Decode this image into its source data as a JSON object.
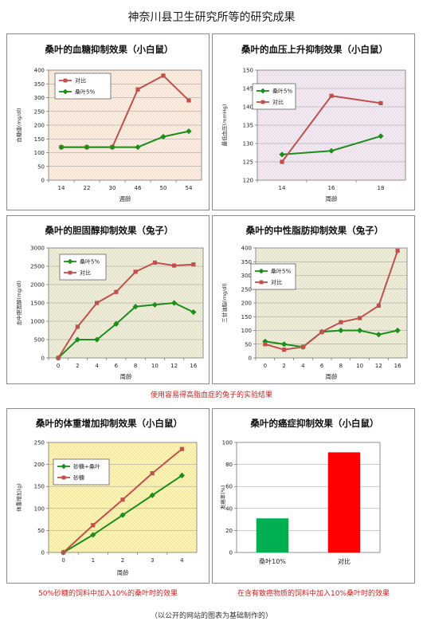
{
  "page": {
    "title": "神奈川县卫生研究所等的研究成果",
    "note_hyper": "使用容易得高脂血症的兔子的实验结果",
    "note_weight": "50%砂糖的饲料中加入10%的桑叶时的效果",
    "note_cancer": "在含有致癌物质的饲料中加入10%桑叶时的效果",
    "footer": "（以公开的网站的图表为基础制作的）"
  },
  "chart_data": [
    {
      "id": "glucose",
      "type": "line",
      "title": "桑叶的血糖抑制效果（小白鼠）",
      "xlabel": "週龄",
      "ylabel": "血糖值(mg/dl)",
      "categories": [
        "14",
        "22",
        "30",
        "46",
        "50",
        "54"
      ],
      "ylim": [
        0,
        400
      ],
      "yticks": [
        0,
        50,
        100,
        150,
        200,
        250,
        300,
        350,
        400
      ],
      "legend_position": "top-left",
      "series": [
        {
          "name": "对比",
          "color": "#c0504d",
          "marker": "square",
          "values": [
            120,
            120,
            120,
            330,
            380,
            290
          ]
        },
        {
          "name": "桑叶5%",
          "color": "#1a8f1a",
          "marker": "diamond",
          "values": [
            120,
            120,
            120,
            120,
            158,
            178
          ]
        }
      ],
      "background": "#fdf0e2"
    },
    {
      "id": "pressure",
      "type": "line",
      "title": "桑叶的血压上升抑制效果（小白鼠）",
      "xlabel": "周龄",
      "ylabel": "最低血压(mmHg)",
      "categories": [
        "14",
        "16",
        "18"
      ],
      "ylim": [
        120,
        150
      ],
      "yticks": [
        120,
        125,
        130,
        135,
        140,
        145,
        150
      ],
      "legend_position": "top-left",
      "series": [
        {
          "name": "桑叶5%",
          "color": "#1a8f1a",
          "marker": "diamond",
          "values": [
            127,
            128,
            132
          ]
        },
        {
          "name": "对比",
          "color": "#c0504d",
          "marker": "square",
          "values": [
            125,
            143,
            141
          ]
        }
      ],
      "background": "#f3ecf6"
    },
    {
      "id": "cholesterol",
      "type": "line",
      "title": "桑叶的胆固醇抑制效果（兔子）",
      "xlabel": "周龄",
      "ylabel": "血中胆固醇(mg/dl)",
      "categories": [
        "0",
        "2",
        "4",
        "6",
        "8",
        "10",
        "12",
        "16"
      ],
      "ylim": [
        0,
        3000
      ],
      "yticks": [
        0,
        500,
        1000,
        1500,
        2000,
        2500,
        3000
      ],
      "legend_position": "top-left",
      "series": [
        {
          "name": "桑叶5%",
          "color": "#1a8f1a",
          "marker": "diamond",
          "values": [
            0,
            500,
            500,
            930,
            1400,
            1450,
            1500,
            1250
          ]
        },
        {
          "name": "对比",
          "color": "#c0504d",
          "marker": "square",
          "values": [
            0,
            850,
            1500,
            1800,
            2350,
            2600,
            2520,
            2550
          ]
        }
      ],
      "background": "#eef0da"
    },
    {
      "id": "triglyceride",
      "type": "line",
      "title": "桑叶的中性脂肪抑制效果（兔子）",
      "xlabel": "周龄",
      "ylabel": "三甘油脂(mg/dl)",
      "categories": [
        "0",
        "2",
        "4",
        "6",
        "8",
        "10",
        "12",
        "16"
      ],
      "ylim": [
        0,
        400
      ],
      "yticks": [
        0,
        50,
        100,
        150,
        200,
        250,
        300,
        350,
        400
      ],
      "legend_position": "top-left",
      "series": [
        {
          "name": "桑叶5%",
          "color": "#1a8f1a",
          "marker": "diamond",
          "values": [
            60,
            50,
            40,
            95,
            100,
            100,
            85,
            100
          ]
        },
        {
          "name": "对比",
          "color": "#c0504d",
          "marker": "square",
          "values": [
            50,
            30,
            40,
            95,
            130,
            145,
            190,
            390
          ]
        }
      ],
      "background": "#eef0da"
    },
    {
      "id": "weight",
      "type": "line",
      "title": "桑叶的体重增加抑制效果（小白鼠）",
      "xlabel": "周龄",
      "ylabel": "体重增加(g)",
      "categories": [
        "0",
        "1",
        "2",
        "3",
        "4"
      ],
      "ylim": [
        0,
        250
      ],
      "yticks": [
        0,
        50,
        100,
        150,
        200,
        250
      ],
      "legend_position": "top-left",
      "series": [
        {
          "name": "砂糖+桑叶",
          "color": "#1a8f1a",
          "marker": "diamond",
          "values": [
            0,
            40,
            85,
            130,
            175
          ]
        },
        {
          "name": "砂糖",
          "color": "#c0504d",
          "marker": "square",
          "values": [
            0,
            62,
            120,
            180,
            235
          ]
        }
      ],
      "background": "#fcf7b0"
    },
    {
      "id": "cancer",
      "type": "bar",
      "title": "桑叶的癌症抑制效果（小白鼠）",
      "xlabel": "",
      "ylabel": "发癌率(%)",
      "categories": [
        "桑叶10%",
        "对比"
      ],
      "values": [
        31,
        91
      ],
      "colors": [
        "#00b050",
        "#ff0000"
      ],
      "ylim": [
        0,
        100
      ],
      "yticks": [
        0,
        20,
        40,
        60,
        80,
        100
      ],
      "background": "#ffffff"
    }
  ]
}
